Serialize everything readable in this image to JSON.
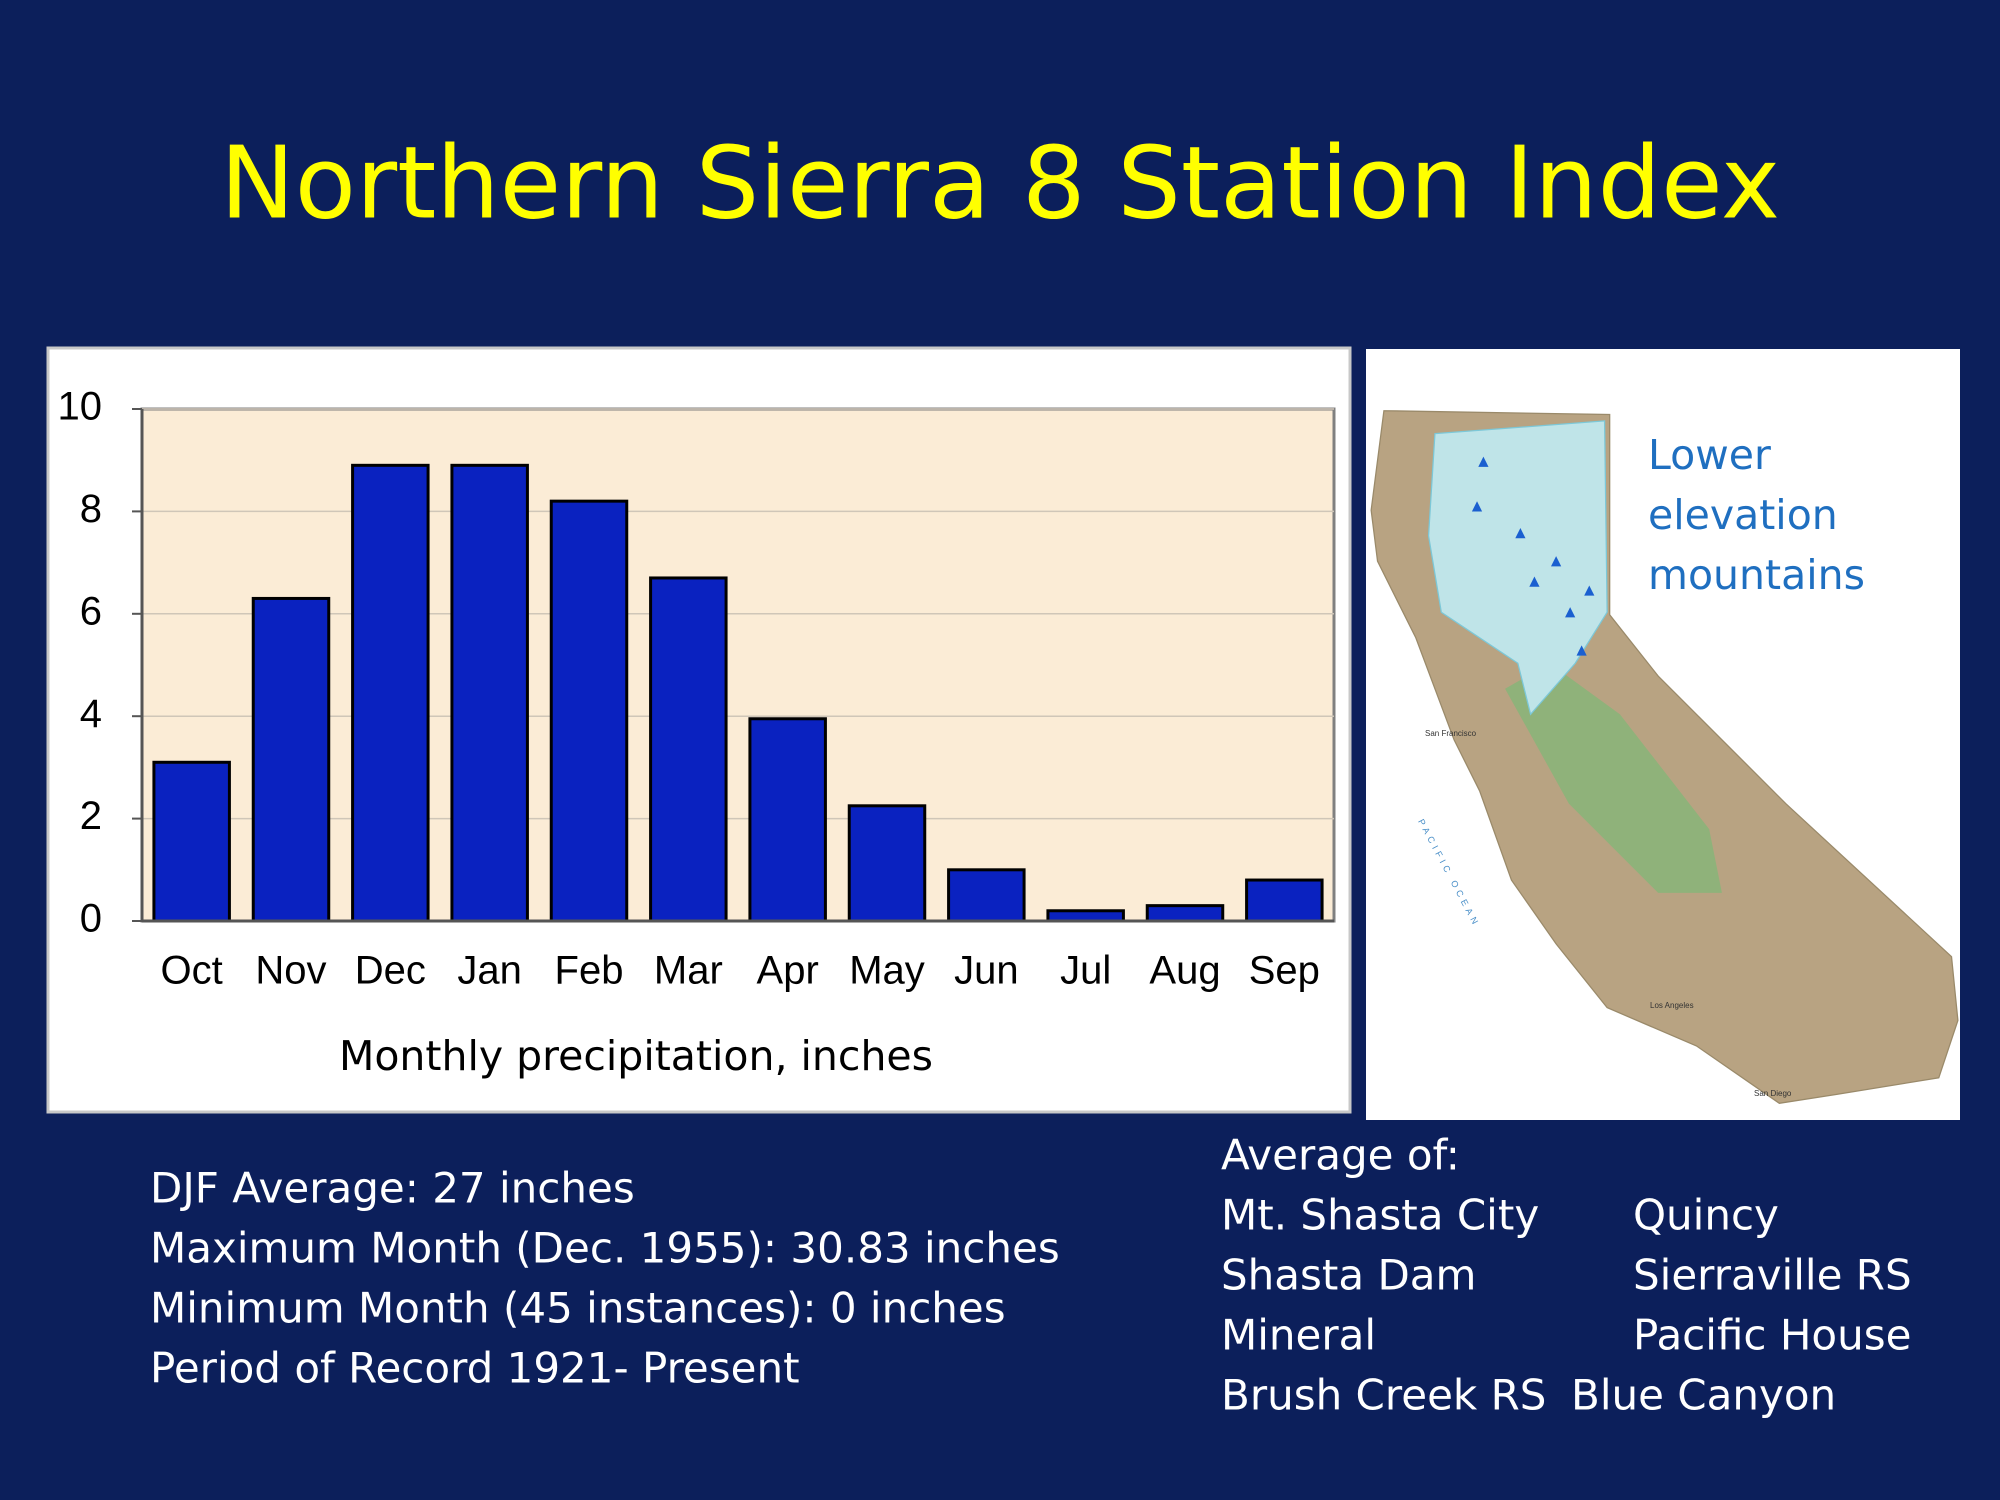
{
  "title": "Northern Sierra 8 Station Index",
  "chart_data": {
    "type": "bar",
    "categories": [
      "Oct",
      "Nov",
      "Dec",
      "Jan",
      "Feb",
      "Mar",
      "Apr",
      "May",
      "Jun",
      "Jul",
      "Aug",
      "Sep"
    ],
    "values": [
      3.1,
      6.3,
      8.9,
      8.9,
      8.2,
      6.7,
      3.95,
      2.25,
      1.0,
      0.2,
      0.3,
      0.8
    ],
    "color": "#0a22c0",
    "xlabel": "Monthly precipitation, inches",
    "ylim": [
      0,
      10
    ],
    "yticks": [
      0,
      2,
      4,
      6,
      8,
      10
    ],
    "grid": true
  },
  "map": {
    "label": [
      "Lower",
      "elevation",
      "mountains"
    ],
    "places": [
      "San Francisco",
      "PACIFIC OCEAN",
      "Los Angeles",
      "San Diego"
    ]
  },
  "notes": [
    "DJF Average: 27 inches",
    "Maximum Month (Dec. 1955): 30.83 inches",
    "Minimum Month (45 instances): 0 inches",
    "Period of Record 1921- Present"
  ],
  "stations": {
    "heading": "Average of:",
    "rows": [
      [
        "Mt. Shasta City",
        "Quincy"
      ],
      [
        "Shasta Dam",
        "Sierraville RS"
      ],
      [
        "Mineral",
        "Pacific House"
      ],
      [
        "Brush Creek RS",
        "Blue Canyon"
      ]
    ]
  }
}
